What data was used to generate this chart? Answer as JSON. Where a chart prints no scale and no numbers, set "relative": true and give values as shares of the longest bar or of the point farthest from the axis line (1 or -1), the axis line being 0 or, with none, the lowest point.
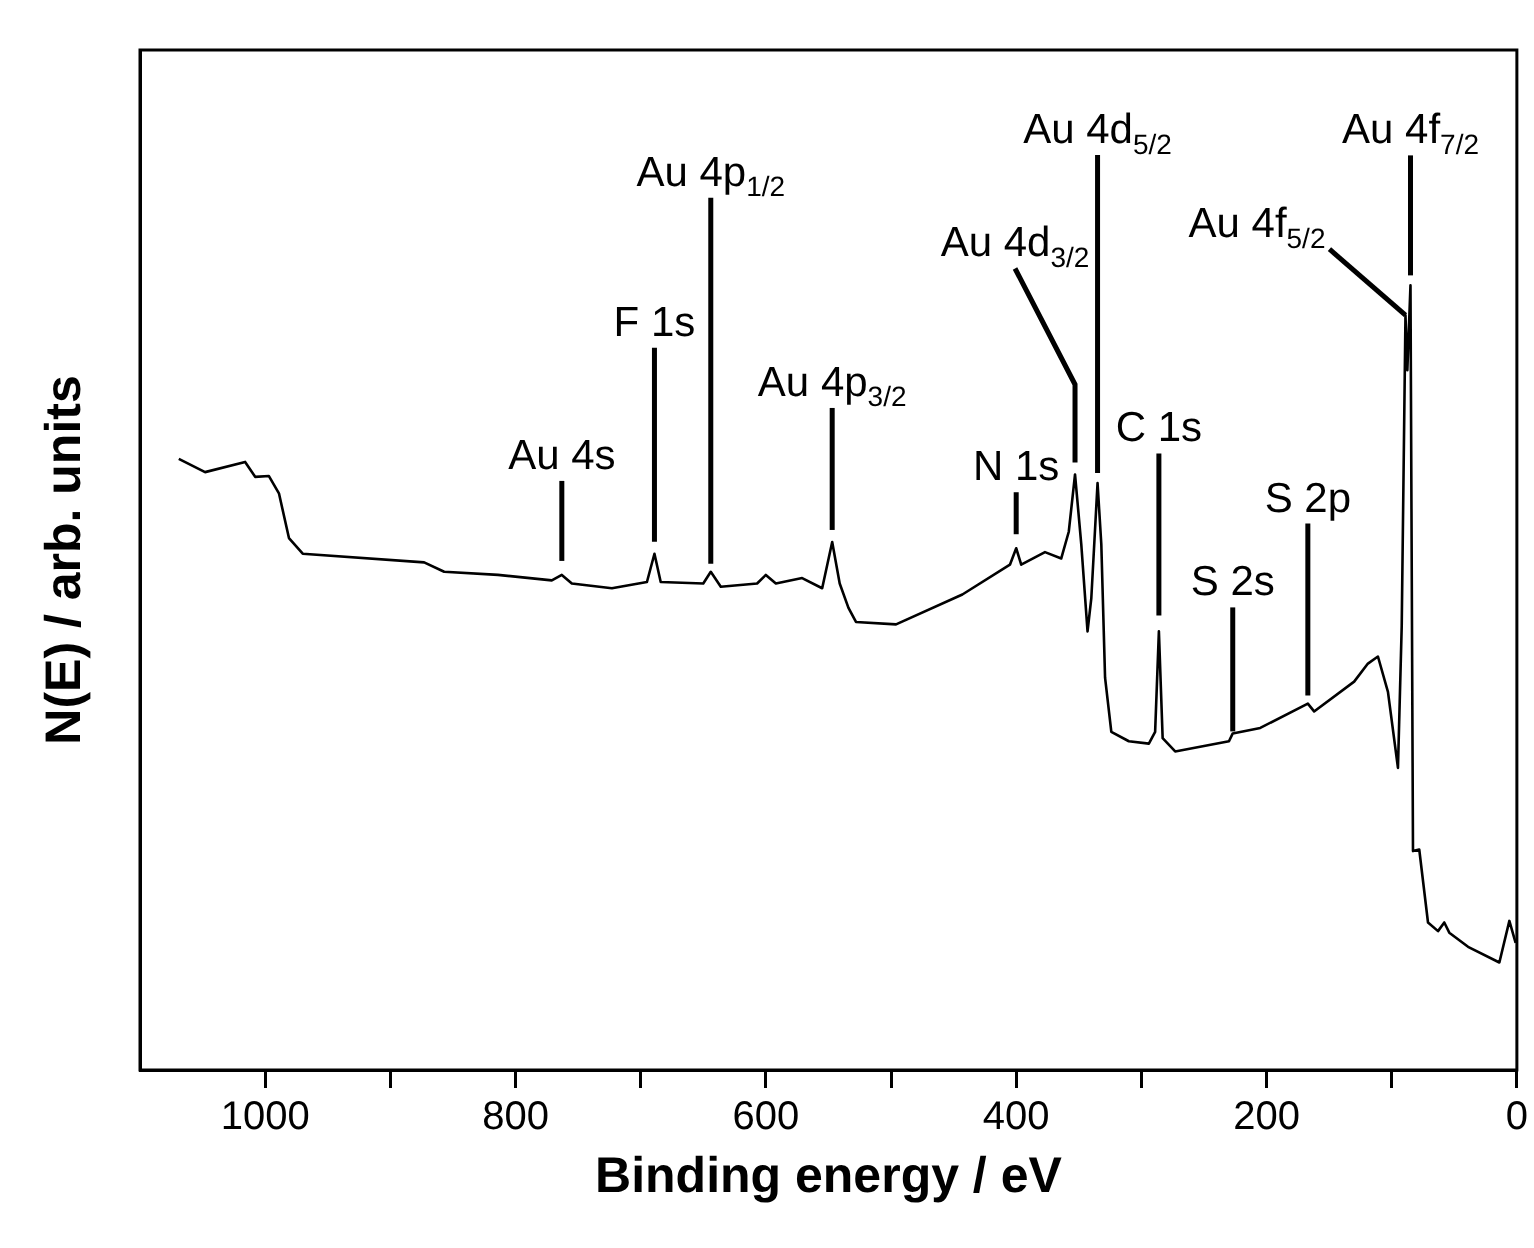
{
  "chart_data": {
    "type": "line",
    "xlabel": "Binding energy / eV",
    "ylabel": "N(E) / arb. units",
    "relative": true,
    "color": "#000000",
    "grid": false,
    "legend": false,
    "marker": "none",
    "xlim": [
      1100,
      0
    ],
    "xticks": [
      1000,
      {
        "value": 900,
        "label": null
      },
      800,
      {
        "value": 700,
        "label": null
      },
      600,
      {
        "value": 500,
        "label": null
      },
      400,
      {
        "value": 300,
        "label": null
      },
      200,
      {
        "value": 100,
        "label": null
      },
      0
    ],
    "x": [
      1069,
      1048,
      1016,
      1008,
      997,
      989,
      981,
      970,
      873,
      857,
      814,
      771,
      763,
      755,
      723,
      695,
      689,
      684,
      650,
      644,
      636,
      607,
      600,
      592,
      571,
      555,
      547,
      541,
      534,
      528,
      496,
      443,
      405,
      400,
      396,
      377,
      364,
      358,
      353,
      348,
      343,
      340,
      335,
      332,
      329,
      324,
      310,
      294,
      289,
      286,
      283,
      273,
      230,
      227,
      205,
      167,
      162,
      130,
      119,
      111,
      103,
      95,
      92,
      89,
      87.5,
      85,
      83,
      78,
      71,
      63,
      58,
      54,
      39,
      14,
      6,
      1
    ],
    "values": [
      0.779,
      0.762,
      0.775,
      0.756,
      0.757,
      0.735,
      0.678,
      0.658,
      0.647,
      0.635,
      0.631,
      0.624,
      0.631,
      0.62,
      0.614,
      0.622,
      0.658,
      0.622,
      0.62,
      0.635,
      0.616,
      0.62,
      0.631,
      0.62,
      0.627,
      0.614,
      0.673,
      0.62,
      0.589,
      0.571,
      0.568,
      0.606,
      0.644,
      0.665,
      0.644,
      0.66,
      0.652,
      0.686,
      0.759,
      0.67,
      0.559,
      0.601,
      0.748,
      0.67,
      0.5,
      0.431,
      0.419,
      0.416,
      0.431,
      0.559,
      0.423,
      0.406,
      0.419,
      0.429,
      0.436,
      0.467,
      0.457,
      0.495,
      0.518,
      0.527,
      0.482,
      0.385,
      0.566,
      0.962,
      0.892,
      1.0,
      0.279,
      0.281,
      0.188,
      0.177,
      0.188,
      0.175,
      0.157,
      0.137,
      0.19,
      0.162
    ],
    "annotations": [
      {
        "text": "Au 4s",
        "x": 763,
        "y": 0.631
      },
      {
        "text": "F 1s",
        "x": 689,
        "y": 0.658
      },
      {
        "text": "Au 4p$_{1/2}$",
        "x": 644,
        "y": 0.635
      },
      {
        "text": "Au 4p$_{3/2}$",
        "x": 547,
        "y": 0.673
      },
      {
        "text": "N 1s",
        "x": 400,
        "y": 0.665
      },
      {
        "text": "Au 4d$_{3/2}$",
        "x": 353,
        "y": 0.759
      },
      {
        "text": "Au 4d$_{5/2}$",
        "x": 335,
        "y": 0.748
      },
      {
        "text": "C 1s",
        "x": 286,
        "y": 0.559
      },
      {
        "text": "S 2s",
        "x": 227,
        "y": 0.429
      },
      {
        "text": "S 2p",
        "x": 167,
        "y": 0.467
      },
      {
        "text": "Au 4f$_{5/2}$",
        "x": 89,
        "y": 0.962
      },
      {
        "text": "Au 4f$_{7/2}$",
        "x": 85,
        "y": 1.0
      }
    ]
  }
}
